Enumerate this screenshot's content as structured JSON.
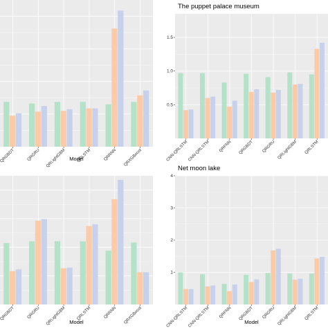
{
  "chart_data": [
    {
      "type": "bar",
      "panel": "top-left",
      "title": "",
      "xlabel": "Model",
      "ylabel": "",
      "categories": [
        "QRGBDT",
        "QRGRU",
        "QRLightGBM",
        "QRLSTM",
        "QRRNN",
        "QRXGBoost"
      ],
      "ylim": [
        0,
        1.8
      ],
      "grid": true,
      "yticks": [],
      "series": [
        {
          "color": "#b4e2c8",
          "values": [
            0.55,
            0.53,
            0.55,
            0.55,
            0.52,
            0.55
          ]
        },
        {
          "color": "#fbcaa6",
          "values": [
            0.38,
            0.43,
            0.44,
            0.47,
            1.45,
            0.63
          ]
        },
        {
          "color": "#c7d1ec",
          "values": [
            0.41,
            0.5,
            0.46,
            0.47,
            1.67,
            0.69
          ]
        }
      ]
    },
    {
      "type": "bar",
      "panel": "top-right",
      "title": "The puppet palace museum",
      "xlabel": "",
      "ylabel": "",
      "categories": [
        "CNN-QRLSTM",
        "CNN-QRLSTM",
        "QRFNN",
        "QRGBDT",
        "QRGRU",
        "QRLightGBM",
        "QRLSTM"
      ],
      "ylim": [
        0,
        1.85
      ],
      "grid": true,
      "yticks": [
        "0.5",
        "1.0",
        "1.5"
      ],
      "ytick_values": [
        0.5,
        1.0,
        1.5
      ],
      "series": [
        {
          "color": "#b4e2c8",
          "values": [
            0.97,
            0.97,
            0.83,
            0.96,
            0.91,
            0.98,
            0.95
          ]
        },
        {
          "color": "#fbcaa6",
          "values": [
            0.42,
            0.6,
            0.47,
            0.69,
            0.68,
            0.8,
            1.33
          ]
        },
        {
          "color": "#c7d1ec",
          "values": [
            0.43,
            0.62,
            0.56,
            0.73,
            0.72,
            0.81,
            1.42
          ]
        }
      ]
    },
    {
      "type": "bar",
      "panel": "bottom-left",
      "title": "",
      "xlabel": "Model",
      "ylabel": "",
      "categories": [
        "QRGBDT",
        "QRGRU",
        "QRLightGBM",
        "QRLSTM",
        "QRRNN",
        "QRXGBoost"
      ],
      "ylim": [
        0,
        2.2
      ],
      "grid": true,
      "yticks": [],
      "series": [
        {
          "color": "#b4e2c8",
          "values": [
            1.05,
            1.08,
            1.08,
            1.08,
            0.92,
            1.06
          ]
        },
        {
          "color": "#fbcaa6",
          "values": [
            0.57,
            1.43,
            0.62,
            1.34,
            1.8,
            0.55
          ]
        },
        {
          "color": "#c7d1ec",
          "values": [
            0.6,
            1.46,
            0.63,
            1.37,
            2.13,
            0.55
          ]
        }
      ]
    },
    {
      "type": "bar",
      "panel": "bottom-right",
      "title": "Net moon lake",
      "xlabel": "Model",
      "ylabel": "",
      "categories": [
        "CNN-QRLSTM",
        "CNN-QRLSTM",
        "QRFNN",
        "QRGBDT",
        "QRGRU",
        "QRLightGBM",
        "QRLSTM"
      ],
      "ylim": [
        0,
        4
      ],
      "grid": true,
      "yticks": [
        "1",
        "2",
        "3",
        "4"
      ],
      "ytick_values": [
        1,
        2,
        3,
        4
      ],
      "series": [
        {
          "color": "#b4e2c8",
          "values": [
            1.0,
            0.94,
            0.64,
            0.92,
            0.98,
            0.96,
            0.96
          ]
        },
        {
          "color": "#fbcaa6",
          "values": [
            0.48,
            0.56,
            0.41,
            0.7,
            1.68,
            0.77,
            1.43
          ]
        },
        {
          "color": "#c7d1ec",
          "values": [
            0.48,
            0.59,
            0.62,
            0.78,
            1.73,
            0.8,
            1.48
          ]
        }
      ]
    }
  ]
}
